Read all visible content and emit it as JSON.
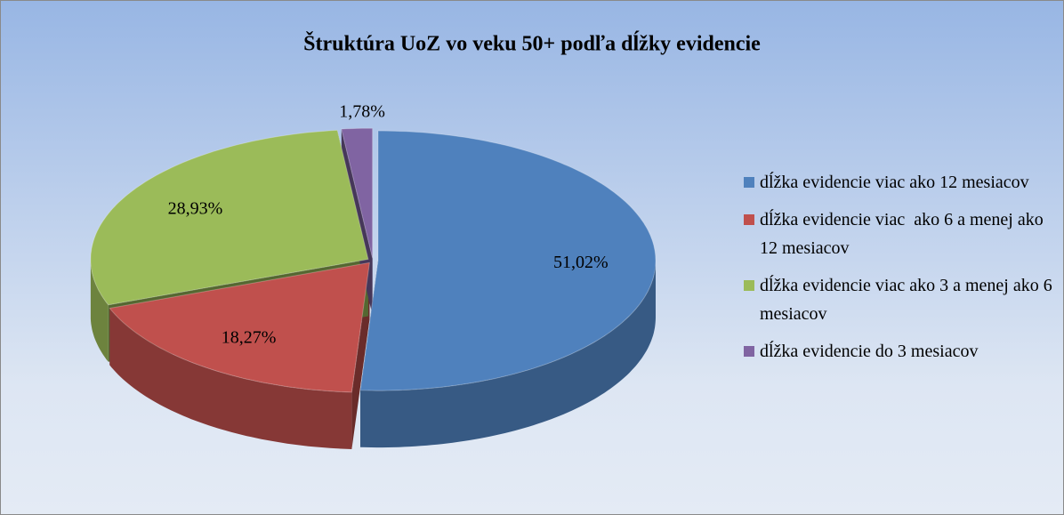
{
  "chart_data": {
    "type": "pie",
    "title": "Štruktúra UoZ vo veku 50+ podľa dĺžky evidencie",
    "categories": [
      "dĺžka evidencie viac ako 12 mesiacov",
      "dĺžka evidencie viac  ako 6 a menej ako 12 mesiacov",
      "dĺžka evidencie viac ako 3 a menej ako 6 mesiacov",
      "dĺžka evidencie do 3 mesiacov"
    ],
    "values": [
      51.02,
      18.27,
      28.93,
      1.78
    ],
    "value_labels": [
      "51,02%",
      "18,27%",
      "28,93%",
      "1,78%"
    ],
    "colors": [
      "#4f81bd",
      "#c0504d",
      "#9bbb59",
      "#8064a2"
    ],
    "legend": "right"
  }
}
